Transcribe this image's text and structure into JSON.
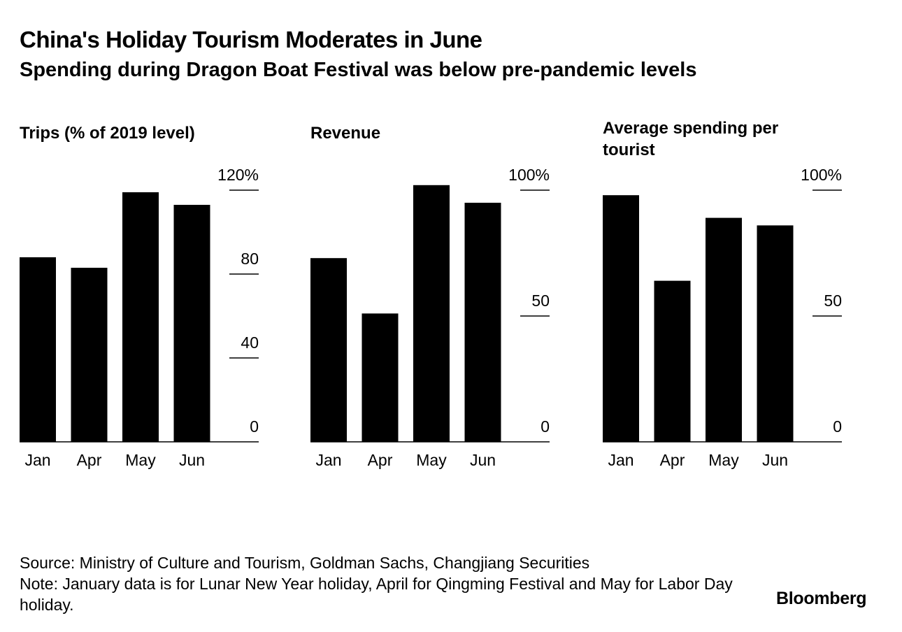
{
  "header": {
    "title": "China's Holiday Tourism Moderates in June",
    "subtitle": "Spending during Dragon Boat Festival was below pre-pandemic levels"
  },
  "chart_data": [
    {
      "type": "bar",
      "title": "Trips (% of 2019 level)",
      "categories": [
        "Jan",
        "Apr",
        "May",
        "Jun"
      ],
      "values": [
        88,
        83,
        119,
        113
      ],
      "ylim": [
        0,
        120
      ],
      "yticks": [
        0,
        40,
        80,
        120
      ],
      "ytick_labels": [
        "0",
        "40",
        "80",
        "120%"
      ],
      "axis_side": "right",
      "grid": false
    },
    {
      "type": "bar",
      "title": "Revenue",
      "categories": [
        "Jan",
        "Apr",
        "May",
        "Jun"
      ],
      "values": [
        73,
        51,
        102,
        95
      ],
      "ylim": [
        0,
        100
      ],
      "yticks": [
        0,
        50,
        100
      ],
      "ytick_labels": [
        "0",
        "50",
        "100%"
      ],
      "axis_side": "right",
      "grid": false
    },
    {
      "type": "bar",
      "title": "Average spending per tourist",
      "categories": [
        "Jan",
        "Apr",
        "May",
        "Jun"
      ],
      "values": [
        98,
        64,
        89,
        86
      ],
      "ylim": [
        0,
        100
      ],
      "yticks": [
        0,
        50,
        100
      ],
      "ytick_labels": [
        "0",
        "50",
        "100%"
      ],
      "axis_side": "right",
      "grid": false
    }
  ],
  "footer": {
    "source": "Source: Ministry of Culture and Tourism, Goldman Sachs, Changjiang Securities",
    "note": "Note: January data is for Lunar New Year holiday, April for Qingming Festival and May for Labor Day holiday.",
    "brand": "Bloomberg"
  }
}
